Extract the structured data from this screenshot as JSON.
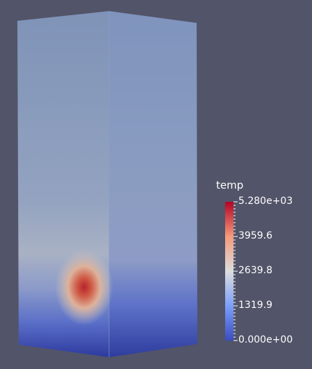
{
  "legend": {
    "title": "temp",
    "max_label": "5.280e+03",
    "labels": [
      "3959.6",
      "2639.8",
      "1319.9"
    ],
    "min_label": "0.000e+00",
    "range": [
      0,
      5280
    ],
    "colormap": {
      "low": "#3b4cc0",
      "mid": "#dddddd",
      "high": "#b40426"
    }
  },
  "scene": {
    "background": "#525469",
    "object": "rectangular-block",
    "hotspot_value": 5280
  }
}
